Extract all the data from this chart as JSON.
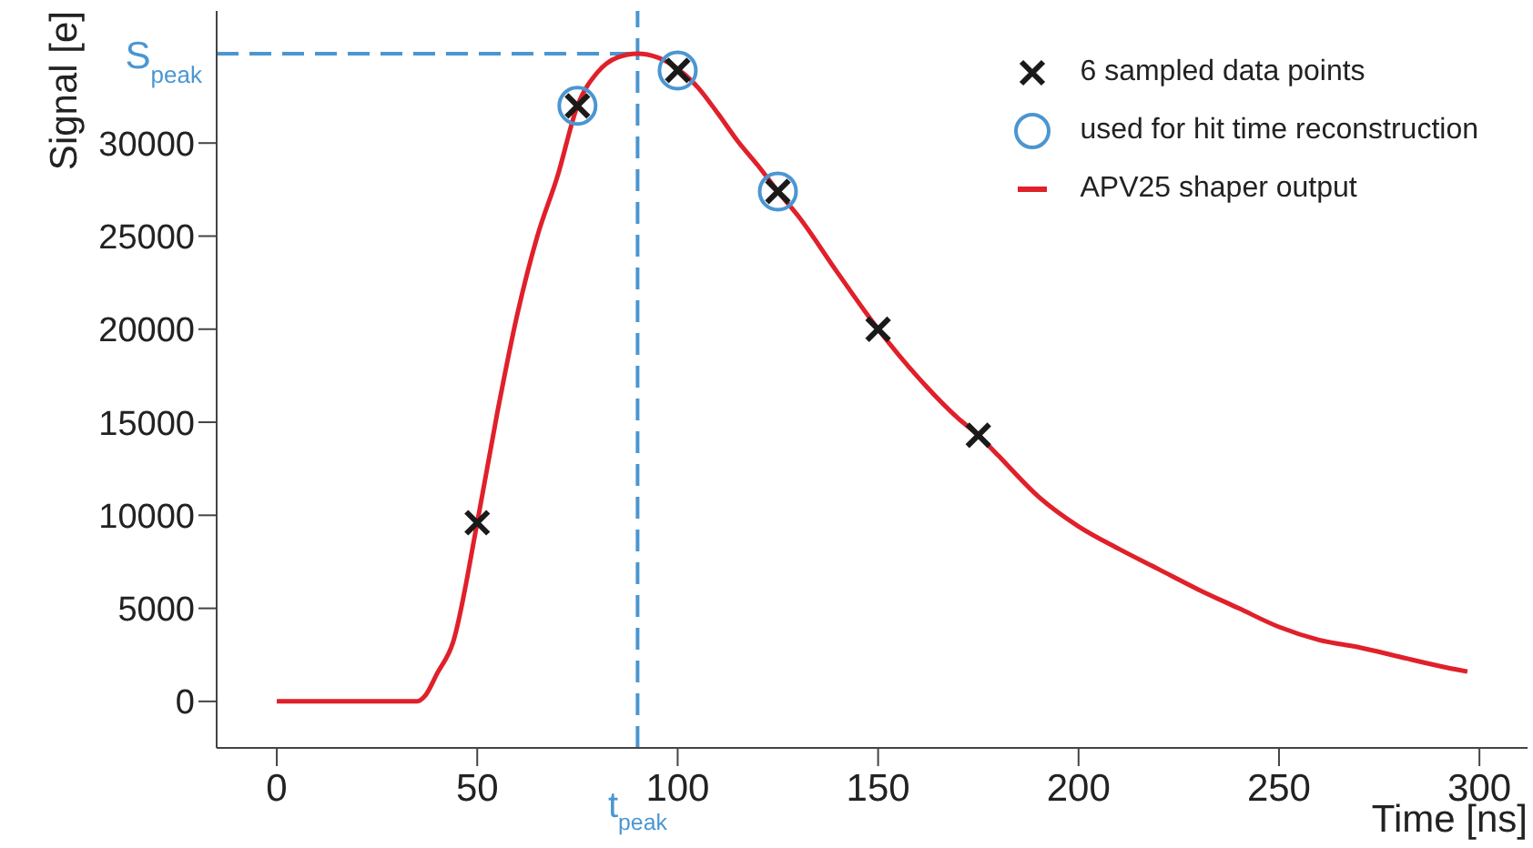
{
  "chart_data": {
    "type": "line",
    "xlabel": "Time [ns]",
    "ylabel": "Signal [e]",
    "xlim": [
      -15,
      312
    ],
    "ylim": [
      -2500,
      37100
    ],
    "xticks": [
      0,
      50,
      100,
      150,
      200,
      250,
      300
    ],
    "yticks": [
      0,
      5000,
      10000,
      15000,
      20000,
      25000,
      30000
    ],
    "grid": false,
    "legend": "top right",
    "ref_lines": [
      {
        "axis": "y",
        "value": 34800,
        "label": "S$_{peak}$",
        "color": "#4a96d2",
        "line_style": "dashed"
      },
      {
        "axis": "x",
        "value": 90,
        "label": "t$_{peak}$",
        "color": "#4a96d2",
        "line_style": "dashed"
      }
    ],
    "series": [
      {
        "name": "6 sampled data points",
        "type": "scatter",
        "marker": "cross",
        "color": "#1a1a1a",
        "x": [
          50,
          75,
          100,
          125,
          150,
          175
        ],
        "values": [
          9600,
          32000,
          33900,
          27400,
          20000,
          14300
        ]
      },
      {
        "name": "used for hit time reconstruction",
        "type": "scatter",
        "marker": "circle",
        "color": "#4a96d2",
        "x": [
          75,
          100,
          125
        ],
        "values": [
          32000,
          33900,
          27400
        ]
      },
      {
        "name": "APV25 shaper output",
        "marker": "none",
        "line_style": "solid",
        "color": "#e0202a",
        "x": [
          0,
          10,
          20,
          30,
          35,
          37,
          40,
          44,
          50,
          55,
          60,
          65,
          70,
          75,
          80,
          85,
          90,
          95,
          100,
          105,
          110,
          115,
          120,
          125,
          130,
          140,
          150,
          160,
          170,
          175,
          180,
          190,
          200,
          210,
          220,
          230,
          240,
          250,
          260,
          270,
          280,
          290,
          297
        ],
        "values": [
          0,
          0,
          0,
          0,
          0,
          300,
          1500,
          3200,
          9600,
          15500,
          20800,
          25000,
          28200,
          32000,
          33800,
          34600,
          34800,
          34600,
          34000,
          33000,
          31600,
          30100,
          28800,
          27400,
          26100,
          23000,
          20000,
          17400,
          15200,
          14300,
          13200,
          11000,
          9400,
          8200,
          7100,
          6000,
          5000,
          4000,
          3300,
          2900,
          2400,
          1900,
          1600
        ]
      }
    ]
  }
}
